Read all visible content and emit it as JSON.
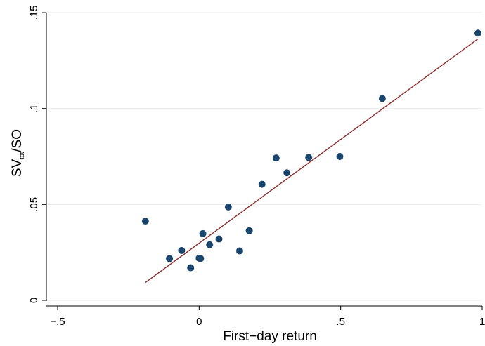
{
  "chart_data": {
    "type": "scatter",
    "xlabel": "First−day return",
    "ylabel": {
      "main": "SV",
      "sub": "tot",
      "rest": "/SO"
    },
    "xlim": [
      -0.5,
      1.0
    ],
    "ylim": [
      0,
      0.15
    ],
    "grid": true,
    "x_ticks": [
      {
        "value": -0.5,
        "label": "−.5"
      },
      {
        "value": 0,
        "label": "0"
      },
      {
        "value": 0.5,
        "label": ".5"
      },
      {
        "value": 1,
        "label": "1"
      }
    ],
    "y_ticks": [
      {
        "value": 0,
        "label": "0"
      },
      {
        "value": 0.05,
        "label": ".05"
      },
      {
        "value": 0.1,
        "label": ".1"
      },
      {
        "value": 0.15,
        "label": ".15"
      }
    ],
    "points": [
      {
        "x": -0.19,
        "y": 0.0413
      },
      {
        "x": -0.105,
        "y": 0.0218
      },
      {
        "x": -0.062,
        "y": 0.026
      },
      {
        "x": -0.03,
        "y": 0.017
      },
      {
        "x": 0.0,
        "y": 0.022
      },
      {
        "x": 0.005,
        "y": 0.0218
      },
      {
        "x": 0.013,
        "y": 0.0348
      },
      {
        "x": 0.037,
        "y": 0.029
      },
      {
        "x": 0.07,
        "y": 0.032
      },
      {
        "x": 0.103,
        "y": 0.0487
      },
      {
        "x": 0.143,
        "y": 0.0258
      },
      {
        "x": 0.177,
        "y": 0.0363
      },
      {
        "x": 0.222,
        "y": 0.0605
      },
      {
        "x": 0.272,
        "y": 0.0742
      },
      {
        "x": 0.31,
        "y": 0.0665
      },
      {
        "x": 0.387,
        "y": 0.0745
      },
      {
        "x": 0.497,
        "y": 0.075
      },
      {
        "x": 0.647,
        "y": 0.1052
      },
      {
        "x": 0.985,
        "y": 0.1393
      }
    ],
    "fit_line": {
      "x1": -0.19,
      "y1": 0.0093,
      "x2": 0.985,
      "y2": 0.1363
    },
    "colors": {
      "points": "#1a466e",
      "fit": "#8b2c2c",
      "grid": "#ebebeb",
      "axis": "#000000"
    }
  }
}
